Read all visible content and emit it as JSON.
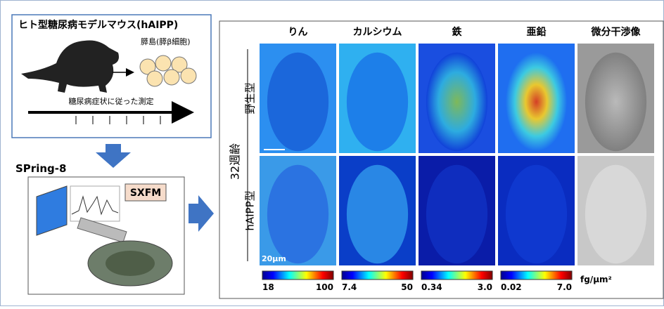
{
  "mouse_box": {
    "title": "ヒト型糖尿病モデルマウス(hAIPP)",
    "islet_label": "膵島(膵β細胞)",
    "timeline_label": "糖尿病症状に従った測定"
  },
  "facility": "SPring-8",
  "sxfm_label": "SXFM",
  "panel": {
    "columns": [
      "りん",
      "カルシウム",
      "鉄",
      "亜鉛",
      "微分干渉像"
    ],
    "age_label": "32週齢",
    "rows": [
      "野生型",
      "hAIPP型"
    ],
    "scale_bar": "20μm",
    "colorbars": [
      {
        "min": "18",
        "max": "100"
      },
      {
        "min": "7.4",
        "max": "50"
      },
      {
        "min": "0.34",
        "max": "3.0"
      },
      {
        "min": "0.02",
        "max": "7.0"
      }
    ],
    "unit": "fg/μm²"
  }
}
